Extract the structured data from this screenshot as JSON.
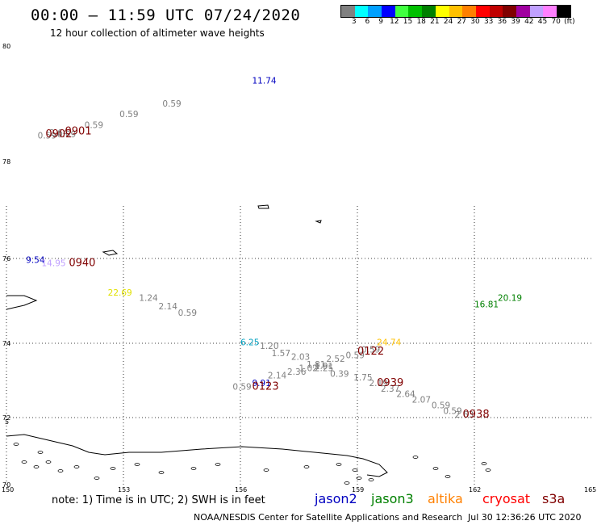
{
  "header": {
    "title": "00:00 – 11:59 UTC 07/24/2020",
    "subtitle": "12 hour collection of altimeter wave heights"
  },
  "colorbar": {
    "colors": [
      "#808080",
      "#00ffff",
      "#00a0ff",
      "#0000ff",
      "#40ff40",
      "#00c000",
      "#008000",
      "#ffff00",
      "#ffc000",
      "#ff8000",
      "#ff0000",
      "#c00000",
      "#800000",
      "#a000a0",
      "#c0a0ff",
      "#ff80ff",
      "#000000"
    ],
    "ticks": [
      "3",
      "6",
      "9",
      "12",
      "15",
      "18",
      "21",
      "24",
      "27",
      "30",
      "33",
      "36",
      "39",
      "42",
      "45",
      "70",
      "(ft)"
    ]
  },
  "axes": {
    "lon_ticks": [
      "150",
      "153",
      "156",
      "159",
      "162",
      "165"
    ],
    "lat_ticks": [
      "80",
      "78",
      "76",
      "74",
      "72",
      "70"
    ],
    "partial_lat_label": "5"
  },
  "chart_data": {
    "type": "scatter",
    "xlabel": "",
    "ylabel": "",
    "xlim": [
      150,
      165
    ],
    "ylim": [
      70,
      80
    ],
    "grid": true,
    "points": [
      {
        "lon": 156.3,
        "lat": 79.35,
        "text": "11.74",
        "color": "#0000c0"
      },
      {
        "lon": 154.0,
        "lat": 78.95,
        "text": "0.59",
        "color": "#808080"
      },
      {
        "lon": 152.9,
        "lat": 78.77,
        "text": "0.59",
        "color": "#808080"
      },
      {
        "lon": 152.0,
        "lat": 78.58,
        "text": "0.59",
        "color": "#808080"
      },
      {
        "lon": 151.1,
        "lat": 78.45,
        "text": "2.64",
        "color": "#808080"
      },
      {
        "lon": 150.8,
        "lat": 78.4,
        "text": "0.59",
        "color": "#808080"
      },
      {
        "lon": 151.3,
        "lat": 78.42,
        "text": "0.59",
        "color": "#808080"
      },
      {
        "lon": 150.5,
        "lat": 75.9,
        "text": "9.54",
        "color": "#0000c0"
      },
      {
        "lon": 150.9,
        "lat": 75.82,
        "text": "14.95",
        "color": "#c0a0ff"
      },
      {
        "lon": 152.6,
        "lat": 75.12,
        "text": "22.69",
        "color": "#e0e000"
      },
      {
        "lon": 153.4,
        "lat": 75.0,
        "text": "1.24",
        "color": "#808080"
      },
      {
        "lon": 153.9,
        "lat": 74.8,
        "text": "2.14",
        "color": "#808080"
      },
      {
        "lon": 154.4,
        "lat": 74.65,
        "text": "0.59",
        "color": "#808080"
      },
      {
        "lon": 156.0,
        "lat": 73.95,
        "text": "6.25",
        "color": "#00a0c0"
      },
      {
        "lon": 156.5,
        "lat": 73.85,
        "text": "1.20",
        "color": "#808080"
      },
      {
        "lon": 156.8,
        "lat": 73.65,
        "text": "1.57",
        "color": "#808080"
      },
      {
        "lon": 157.3,
        "lat": 73.55,
        "text": "2.03",
        "color": "#808080"
      },
      {
        "lon": 157.7,
        "lat": 73.35,
        "text": "1.81",
        "color": "#808080"
      },
      {
        "lon": 157.9,
        "lat": 73.3,
        "text": "1.91",
        "color": "#808080"
      },
      {
        "lon": 158.2,
        "lat": 73.5,
        "text": "2.52",
        "color": "#808080"
      },
      {
        "lon": 158.7,
        "lat": 73.6,
        "text": "0.59",
        "color": "#808080"
      },
      {
        "lon": 159.1,
        "lat": 73.75,
        "text": "0.59",
        "color": "#808080"
      },
      {
        "lon": 159.5,
        "lat": 73.95,
        "text": "24.74",
        "color": "#ffc000"
      },
      {
        "lon": 157.5,
        "lat": 73.25,
        "text": "1.02",
        "color": "#808080"
      },
      {
        "lon": 157.9,
        "lat": 73.25,
        "text": "2.25",
        "color": "#808080"
      },
      {
        "lon": 157.2,
        "lat": 73.15,
        "text": "2.36",
        "color": "#808080"
      },
      {
        "lon": 158.3,
        "lat": 73.1,
        "text": "0.39",
        "color": "#808080"
      },
      {
        "lon": 158.9,
        "lat": 73.0,
        "text": "1.75",
        "color": "#808080"
      },
      {
        "lon": 159.3,
        "lat": 72.85,
        "text": "2.19",
        "color": "#808080"
      },
      {
        "lon": 159.6,
        "lat": 72.7,
        "text": "2.37",
        "color": "#808080"
      },
      {
        "lon": 160.0,
        "lat": 72.55,
        "text": "2.64",
        "color": "#808080"
      },
      {
        "lon": 160.4,
        "lat": 72.4,
        "text": "2.07",
        "color": "#808080"
      },
      {
        "lon": 160.9,
        "lat": 72.25,
        "text": "0.59",
        "color": "#808080"
      },
      {
        "lon": 161.2,
        "lat": 72.1,
        "text": "0.59",
        "color": "#808080"
      },
      {
        "lon": 161.5,
        "lat": 72.0,
        "text": "2.63",
        "color": "#808080"
      },
      {
        "lon": 156.7,
        "lat": 73.05,
        "text": "2.14",
        "color": "#808080"
      },
      {
        "lon": 156.3,
        "lat": 72.85,
        "text": "9.91",
        "color": "#0000c0"
      },
      {
        "lon": 155.8,
        "lat": 72.75,
        "text": "0.59",
        "color": "#808080"
      },
      {
        "lon": 162.0,
        "lat": 74.85,
        "text": "16.81",
        "color": "#008000"
      },
      {
        "lon": 162.6,
        "lat": 75.0,
        "text": "20.19",
        "color": "#008000"
      }
    ],
    "pass_times": [
      {
        "lon": 151.0,
        "lat": 78.42,
        "text": "0902"
      },
      {
        "lon": 151.5,
        "lat": 78.47,
        "text": "0901"
      },
      {
        "lon": 151.6,
        "lat": 75.82,
        "text": "0940"
      },
      {
        "lon": 159.0,
        "lat": 73.7,
        "text": "0122"
      },
      {
        "lon": 159.5,
        "lat": 72.85,
        "text": "0939"
      },
      {
        "lon": 156.3,
        "lat": 72.75,
        "text": "0123"
      },
      {
        "lon": 161.7,
        "lat": 72.0,
        "text": "0938"
      }
    ]
  },
  "footer": {
    "note": "note: 1) Time is in UTC; 2) SWH is in feet",
    "satellites": [
      {
        "name": "jason2",
        "color": "#0000c0"
      },
      {
        "name": "jason3",
        "color": "#008000"
      },
      {
        "name": "altika",
        "color": "#ff8000"
      },
      {
        "name": "cryosat",
        "color": "#ff0000"
      },
      {
        "name": "s3a",
        "color": "#800000"
      }
    ],
    "credit": "NOAA/NESDIS Center for Satellite Applications and Research",
    "timestamp": "Jul 30 12:36:26 UTC 2020"
  }
}
